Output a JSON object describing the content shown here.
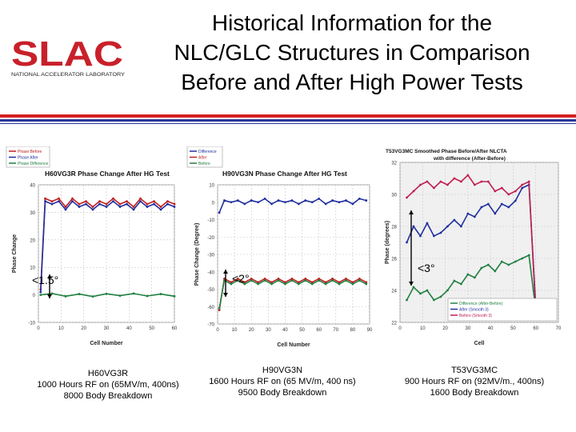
{
  "header": {
    "logo_text": "SLAC",
    "logo_subtext": "NATIONAL ACCELERATOR LABORATORY",
    "title_lines": [
      "Historical Information for the",
      "NLC/GLC Structures in Comparison",
      "Before and After High Power Tests"
    ],
    "colors": {
      "logo_red": "#c8202a",
      "band_red": "#d42020",
      "band_blue": "#2a3a9c"
    }
  },
  "charts": [
    {
      "title": "H60VG3R Phase Change After HG Test",
      "legend": [
        "Phase Before",
        "Phase After",
        "Phase Difference"
      ],
      "annotation": "<1.5°",
      "caption_lines": [
        "H60VG3R",
        "1000 Hours RF on (65MV/m, 400ns)",
        "8000 Body Breakdown"
      ]
    },
    {
      "title": "H90VG3N Phase Change After HG Test",
      "legend": [
        "Difference",
        "After",
        "Before"
      ],
      "annotation": "<2°",
      "caption_lines": [
        "H90VG3N",
        "1600 Hours RF on (65 MV/m, 400 ns)",
        "9500 Body Breakdown"
      ]
    },
    {
      "title": "T53VG3MC Smoothed Phase Before/After NLCTA",
      "subtitle": "with difference (After-Before)",
      "legend": [
        "Difference (After-Before)",
        "After (Smooth 3)",
        "Before (Smooth 3)"
      ],
      "annotation": "<3°",
      "caption_lines": [
        "T53VG3MC",
        "900 Hours RF on (92MV/m., 400ns)",
        "1600 Body Breakdown"
      ]
    }
  ],
  "chart_data": [
    {
      "type": "line",
      "title": "H60VG3R Phase Change After HG Test",
      "xlabel": "Cell Number",
      "ylabel": "Phase Change",
      "xlim": [
        0,
        60
      ],
      "ylim": [
        -10,
        40
      ],
      "xticks": [
        0,
        10,
        20,
        30,
        40,
        50,
        60
      ],
      "yticks": [
        -10,
        0,
        10,
        20,
        30,
        40
      ],
      "grid": true,
      "legend_position": "top-left",
      "series": [
        {
          "name": "Phase Before",
          "color": "#c02020",
          "x": [
            1,
            3,
            6,
            9,
            12,
            15,
            18,
            21,
            24,
            27,
            30,
            33,
            36,
            39,
            42,
            45,
            48,
            51,
            54,
            57,
            60
          ],
          "y": [
            2,
            35,
            34,
            35,
            32,
            35,
            33,
            34,
            32,
            34,
            33,
            35,
            33,
            34,
            32,
            35,
            33,
            34,
            32,
            34,
            33
          ]
        },
        {
          "name": "Phase After",
          "color": "#2030a0",
          "x": [
            1,
            3,
            6,
            9,
            12,
            15,
            18,
            21,
            24,
            27,
            30,
            33,
            36,
            39,
            42,
            45,
            48,
            51,
            54,
            57,
            60
          ],
          "y": [
            1,
            34,
            33,
            34,
            31,
            34,
            32,
            33,
            31,
            33,
            32,
            34,
            32,
            33,
            31,
            34,
            32,
            33,
            31,
            33,
            32
          ]
        },
        {
          "name": "Phase Difference",
          "color": "#208040",
          "x": [
            1,
            6,
            12,
            18,
            24,
            30,
            36,
            42,
            48,
            54,
            60
          ],
          "y": [
            0,
            0.5,
            -0.5,
            0.3,
            -0.6,
            0.4,
            -0.3,
            0.5,
            -0.4,
            0.3,
            -0.5
          ]
        }
      ]
    },
    {
      "type": "line",
      "title": "H90VG3N Phase Change After HG Test",
      "xlabel": "Cell Number",
      "ylabel": "Phase Change (Degree)",
      "xlim": [
        0,
        90
      ],
      "ylim": [
        -70,
        10
      ],
      "xticks": [
        0,
        10,
        20,
        30,
        40,
        50,
        60,
        70,
        80,
        90
      ],
      "yticks": [
        -70,
        -60,
        -50,
        -40,
        -30,
        -20,
        -10,
        0,
        10
      ],
      "grid": true,
      "legend_position": "top-left",
      "series": [
        {
          "name": "Difference",
          "color": "#2030a0",
          "x": [
            1,
            4,
            8,
            12,
            16,
            20,
            24,
            28,
            32,
            36,
            40,
            44,
            48,
            52,
            56,
            60,
            64,
            68,
            72,
            76,
            80,
            84,
            88
          ],
          "y": [
            -6,
            1,
            0,
            1,
            -1,
            1,
            0,
            2,
            -1,
            1,
            0,
            1,
            -1,
            1,
            0,
            2,
            -1,
            1,
            0,
            1,
            -1,
            2,
            1
          ]
        },
        {
          "name": "After",
          "color": "#c02020",
          "x": [
            1,
            4,
            8,
            12,
            16,
            20,
            24,
            28,
            32,
            36,
            40,
            44,
            48,
            52,
            56,
            60,
            64,
            68,
            72,
            76,
            80,
            84,
            88
          ],
          "y": [
            -62,
            -44,
            -46,
            -44,
            -46,
            -44,
            -46,
            -44,
            -46,
            -44,
            -46,
            -44,
            -46,
            -44,
            -46,
            -44,
            -46,
            -44,
            -46,
            -44,
            -46,
            -44,
            -46
          ]
        },
        {
          "name": "Before",
          "color": "#208040",
          "x": [
            1,
            4,
            8,
            12,
            16,
            20,
            24,
            28,
            32,
            36,
            40,
            44,
            48,
            52,
            56,
            60,
            64,
            68,
            72,
            76,
            80,
            84,
            88
          ],
          "y": [
            -61,
            -45,
            -47,
            -45,
            -47,
            -45,
            -47,
            -45,
            -47,
            -45,
            -47,
            -45,
            -47,
            -45,
            -47,
            -45,
            -47,
            -45,
            -47,
            -45,
            -47,
            -45,
            -47
          ]
        }
      ]
    },
    {
      "type": "line",
      "title": "T53VG3MC Smoothed Phase Before/After NLCTA",
      "subtitle": "with difference (After-Before)",
      "xlabel": "Cell",
      "ylabel": "Phase (degrees)",
      "xlim": [
        0,
        70
      ],
      "ylim": [
        22,
        32
      ],
      "xticks": [
        0,
        10,
        20,
        30,
        40,
        50,
        60,
        70
      ],
      "yticks": [
        22,
        24,
        26,
        28,
        30,
        32
      ],
      "grid": true,
      "legend_position": "bottom-right",
      "series": [
        {
          "name": "Difference (After-Before)",
          "color": "#208040",
          "x": [
            3,
            6,
            9,
            12,
            15,
            18,
            21,
            24,
            27,
            30,
            33,
            36,
            39,
            42,
            45,
            48,
            51,
            54,
            57,
            60
          ],
          "y": [
            23.4,
            24.2,
            23.8,
            24,
            23.4,
            23.6,
            24.0,
            24.6,
            24.4,
            25.0,
            24.8,
            25.4,
            25.6,
            25.2,
            25.8,
            25.6,
            25.8,
            26.0,
            26.2,
            22.8
          ]
        },
        {
          "name": "After (Smooth 3)",
          "color": "#2030a0",
          "x": [
            3,
            6,
            9,
            12,
            15,
            18,
            21,
            24,
            27,
            30,
            33,
            36,
            39,
            42,
            45,
            48,
            51,
            54,
            57,
            60
          ],
          "y": [
            27.0,
            28.0,
            27.4,
            28.2,
            27.4,
            27.6,
            28.0,
            28.4,
            28.0,
            28.8,
            28.6,
            29.2,
            29.4,
            28.8,
            29.4,
            29.2,
            29.6,
            30.4,
            30.6,
            23.0
          ]
        },
        {
          "name": "Before (Smooth 3)",
          "color": "#c02050",
          "x": [
            3,
            6,
            9,
            12,
            15,
            18,
            21,
            24,
            27,
            30,
            33,
            36,
            39,
            42,
            45,
            48,
            51,
            54,
            57,
            60
          ],
          "y": [
            29.8,
            30.2,
            30.6,
            30.8,
            30.4,
            30.8,
            30.6,
            31.0,
            30.8,
            31.2,
            30.6,
            30.8,
            30.8,
            30.2,
            30.4,
            30.0,
            30.2,
            30.6,
            30.8,
            22.6
          ]
        }
      ]
    }
  ]
}
